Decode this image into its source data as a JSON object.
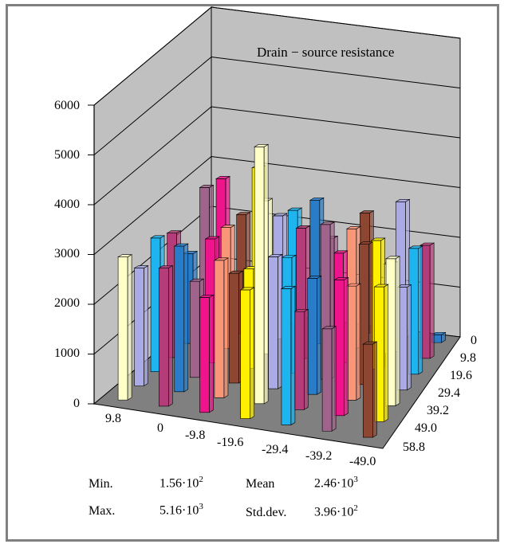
{
  "chart_data": {
    "type": "bar",
    "title": "Drain − source resistance",
    "xlabel": "",
    "ylabel": "",
    "zlim": [
      0,
      6000
    ],
    "z_ticks": [
      "0",
      "1000",
      "2000",
      "3000",
      "4000",
      "5000",
      "6000"
    ],
    "x_ticks": [
      "9.8",
      "0",
      "-9.8",
      "-19.6",
      "-29.4",
      "-39.2",
      "-49.0"
    ],
    "y_ticks": [
      "0",
      "9.8",
      "19.6",
      "29.4",
      "39.2",
      "49.0",
      "58.8"
    ],
    "grid": true,
    "peak": {
      "x": "-19.6",
      "y": "49.0",
      "value": 5160
    },
    "minimum": {
      "x": "-49.0",
      "y": "0",
      "value": 156
    },
    "typical_value": 2460
  },
  "stats": {
    "min_label": "Min.",
    "min_mantissa": "1.56·10",
    "min_exp": "2",
    "max_label": "Max.",
    "max_mantissa": "5.16·10",
    "max_exp": "3",
    "mean_label": "Mean",
    "mean_mantissa": "2.46·10",
    "mean_exp": "3",
    "std_label": "Std.dev.",
    "std_mantissa": "3.96·10",
    "std_exp": "2"
  },
  "colors": {
    "wall": "#c0c0c0",
    "floor": "#808080",
    "bars": [
      "#f0148c",
      "#fff000",
      "#1eb4f0",
      "#a0648c",
      "#8c4632",
      "#aaaae6",
      "#287cc8",
      "#fa9678",
      "#ffffc8",
      "#b43c78"
    ]
  }
}
